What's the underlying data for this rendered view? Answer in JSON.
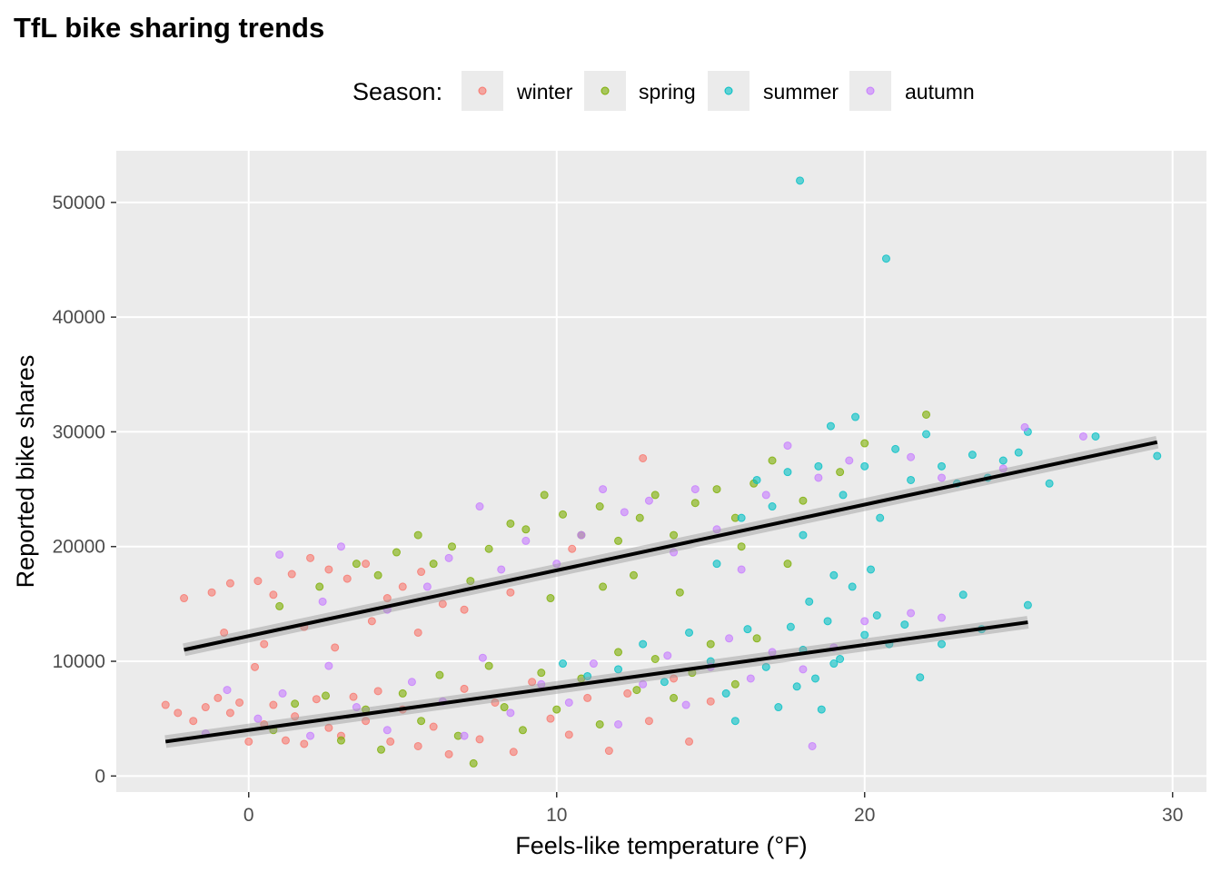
{
  "chart_data": {
    "type": "scatter",
    "title": "TfL bike sharing trends",
    "xlabel": "Feels-like temperature (°F)",
    "ylabel": "Reported bike shares",
    "xlim": [
      -4.3,
      31.1
    ],
    "ylim": [
      -1400,
      54500
    ],
    "xticks": [
      0,
      10,
      20,
      30
    ],
    "yticks": [
      0,
      10000,
      20000,
      30000,
      40000,
      50000
    ],
    "grid": true,
    "legend": {
      "title": "Season:",
      "position": "top"
    },
    "series": [
      {
        "name": "winter",
        "color": "#F8766D",
        "points": [
          [
            -2.7,
            6200
          ],
          [
            -2.3,
            5500
          ],
          [
            -1.8,
            4800
          ],
          [
            -1.4,
            6000
          ],
          [
            -1,
            6800
          ],
          [
            -0.6,
            5500
          ],
          [
            -0.3,
            6400
          ],
          [
            0,
            3000
          ],
          [
            0.2,
            9500
          ],
          [
            0.5,
            4500
          ],
          [
            0.8,
            6200
          ],
          [
            1.2,
            3100
          ],
          [
            1.5,
            5200
          ],
          [
            1.8,
            2800
          ],
          [
            2.2,
            6700
          ],
          [
            2.6,
            4200
          ],
          [
            3,
            3500
          ],
          [
            3.4,
            6900
          ],
          [
            3.8,
            4800
          ],
          [
            4.2,
            7400
          ],
          [
            4.6,
            3000
          ],
          [
            5,
            5800
          ],
          [
            5.5,
            2600
          ],
          [
            6,
            4300
          ],
          [
            6.5,
            1900
          ],
          [
            7,
            7600
          ],
          [
            7.5,
            3200
          ],
          [
            8,
            6400
          ],
          [
            8.6,
            2100
          ],
          [
            9.2,
            8200
          ],
          [
            9.8,
            5000
          ],
          [
            10.4,
            3600
          ],
          [
            11,
            6800
          ],
          [
            11.7,
            2200
          ],
          [
            12.3,
            7200
          ],
          [
            13,
            4800
          ],
          [
            13.8,
            8500
          ],
          [
            14.3,
            3000
          ],
          [
            15,
            6500
          ],
          [
            -2.1,
            15500
          ],
          [
            -1.2,
            16000
          ],
          [
            -0.6,
            16800
          ],
          [
            0.3,
            17000
          ],
          [
            0.8,
            15800
          ],
          [
            1.4,
            17600
          ],
          [
            2,
            19000
          ],
          [
            2.6,
            18000
          ],
          [
            3.2,
            17200
          ],
          [
            3.8,
            18500
          ],
          [
            4.5,
            15500
          ],
          [
            5,
            16500
          ],
          [
            5.6,
            17800
          ],
          [
            6.3,
            15000
          ],
          [
            -0.8,
            12500
          ],
          [
            0.5,
            11500
          ],
          [
            1.8,
            13000
          ],
          [
            2.8,
            11200
          ],
          [
            4,
            13500
          ],
          [
            5.5,
            12500
          ],
          [
            7,
            14500
          ],
          [
            12.8,
            27700
          ],
          [
            10.5,
            19800
          ],
          [
            8.5,
            16000
          ]
        ]
      },
      {
        "name": "spring",
        "color": "#7CAE00",
        "points": [
          [
            0.8,
            4000
          ],
          [
            1.5,
            6300
          ],
          [
            2.5,
            7000
          ],
          [
            3,
            3100
          ],
          [
            3.8,
            5800
          ],
          [
            4.3,
            2300
          ],
          [
            5,
            7200
          ],
          [
            5.6,
            4800
          ],
          [
            6.2,
            8800
          ],
          [
            6.8,
            3500
          ],
          [
            7.3,
            1100
          ],
          [
            7.8,
            9600
          ],
          [
            8.3,
            6000
          ],
          [
            8.9,
            4000
          ],
          [
            9.5,
            9000
          ],
          [
            10,
            5800
          ],
          [
            10.8,
            8500
          ],
          [
            11.4,
            4500
          ],
          [
            12,
            10800
          ],
          [
            12.6,
            7500
          ],
          [
            13.2,
            10200
          ],
          [
            13.8,
            6800
          ],
          [
            14.4,
            9000
          ],
          [
            15,
            11500
          ],
          [
            15.8,
            8000
          ],
          [
            16.5,
            12000
          ],
          [
            3.5,
            18500
          ],
          [
            4.2,
            17500
          ],
          [
            4.8,
            19500
          ],
          [
            5.5,
            21000
          ],
          [
            6,
            18500
          ],
          [
            6.6,
            20000
          ],
          [
            7.2,
            17000
          ],
          [
            7.8,
            19800
          ],
          [
            8.5,
            22000
          ],
          [
            9,
            21500
          ],
          [
            9.6,
            24500
          ],
          [
            10.2,
            22800
          ],
          [
            10.8,
            21000
          ],
          [
            11.4,
            23500
          ],
          [
            12,
            20500
          ],
          [
            12.7,
            22500
          ],
          [
            13.2,
            24500
          ],
          [
            13.8,
            21000
          ],
          [
            14.5,
            23800
          ],
          [
            15.2,
            25000
          ],
          [
            15.8,
            22500
          ],
          [
            16.4,
            25500
          ],
          [
            17,
            27500
          ],
          [
            18,
            24000
          ],
          [
            19.2,
            26500
          ],
          [
            20,
            29000
          ],
          [
            22,
            31500
          ],
          [
            9.8,
            15500
          ],
          [
            11.5,
            16500
          ],
          [
            12.5,
            17500
          ],
          [
            14,
            16000
          ],
          [
            16,
            20000
          ],
          [
            17.5,
            18500
          ],
          [
            1,
            14800
          ],
          [
            2.3,
            16500
          ]
        ]
      },
      {
        "name": "summer",
        "color": "#00BFC4",
        "points": [
          [
            10.2,
            9800
          ],
          [
            11,
            8700
          ],
          [
            12,
            9300
          ],
          [
            12.8,
            11500
          ],
          [
            13.5,
            8200
          ],
          [
            14.3,
            12500
          ],
          [
            15,
            10000
          ],
          [
            15.5,
            7200
          ],
          [
            15.8,
            4800
          ],
          [
            16.2,
            12800
          ],
          [
            16.8,
            9500
          ],
          [
            17.2,
            6000
          ],
          [
            17.6,
            13000
          ],
          [
            18,
            11000
          ],
          [
            18.4,
            8500
          ],
          [
            18.8,
            13500
          ],
          [
            19.2,
            10200
          ],
          [
            19.6,
            16500
          ],
          [
            20,
            12300
          ],
          [
            20.4,
            14000
          ],
          [
            20.8,
            11500
          ],
          [
            21.3,
            13200
          ],
          [
            21.8,
            8600
          ],
          [
            22.5,
            11500
          ],
          [
            23.2,
            15800
          ],
          [
            23.8,
            12800
          ],
          [
            25.3,
            14900
          ],
          [
            17.8,
            7800
          ],
          [
            18.6,
            5800
          ],
          [
            19,
            9800
          ],
          [
            15.2,
            18500
          ],
          [
            16,
            22500
          ],
          [
            16.5,
            25800
          ],
          [
            17,
            23500
          ],
          [
            17.5,
            26500
          ],
          [
            18,
            21000
          ],
          [
            18.5,
            27000
          ],
          [
            18.9,
            30500
          ],
          [
            19.3,
            24500
          ],
          [
            19.7,
            31300
          ],
          [
            20,
            27000
          ],
          [
            20.5,
            22500
          ],
          [
            21,
            28500
          ],
          [
            21.5,
            25800
          ],
          [
            22,
            29800
          ],
          [
            22.5,
            27000
          ],
          [
            23,
            25500
          ],
          [
            23.5,
            28000
          ],
          [
            24,
            26000
          ],
          [
            24.5,
            27500
          ],
          [
            25,
            28200
          ],
          [
            25.3,
            30000
          ],
          [
            26,
            25500
          ],
          [
            27.5,
            29600
          ],
          [
            29.5,
            27900
          ],
          [
            19,
            17500
          ],
          [
            20.2,
            18000
          ],
          [
            18.2,
            15200
          ],
          [
            17.9,
            51900
          ],
          [
            20.7,
            45100
          ]
        ]
      },
      {
        "name": "autumn",
        "color": "#C77CFF",
        "points": [
          [
            -1.4,
            3700
          ],
          [
            -0.7,
            7500
          ],
          [
            0.3,
            5000
          ],
          [
            1.1,
            7200
          ],
          [
            2,
            3500
          ],
          [
            2.6,
            9600
          ],
          [
            3.5,
            6000
          ],
          [
            4.5,
            4000
          ],
          [
            5.3,
            8200
          ],
          [
            6.3,
            6500
          ],
          [
            7,
            3500
          ],
          [
            7.6,
            10300
          ],
          [
            8.5,
            5500
          ],
          [
            9.5,
            8000
          ],
          [
            10.4,
            6400
          ],
          [
            11.2,
            9800
          ],
          [
            12,
            4500
          ],
          [
            12.8,
            8000
          ],
          [
            13.6,
            10500
          ],
          [
            14.2,
            6200
          ],
          [
            15,
            9500
          ],
          [
            15.6,
            12000
          ],
          [
            16.3,
            8500
          ],
          [
            17,
            10800
          ],
          [
            18,
            9300
          ],
          [
            18.3,
            2600
          ],
          [
            19,
            11200
          ],
          [
            1,
            19300
          ],
          [
            2.4,
            15200
          ],
          [
            3,
            20000
          ],
          [
            4.5,
            14500
          ],
          [
            5.8,
            16500
          ],
          [
            6.5,
            19000
          ],
          [
            7.5,
            23500
          ],
          [
            8.2,
            18000
          ],
          [
            9,
            20500
          ],
          [
            10,
            18500
          ],
          [
            10.8,
            21000
          ],
          [
            11.5,
            25000
          ],
          [
            12.2,
            23000
          ],
          [
            13,
            24000
          ],
          [
            13.8,
            19500
          ],
          [
            14.5,
            25000
          ],
          [
            15.2,
            21500
          ],
          [
            16,
            18000
          ],
          [
            16.8,
            24500
          ],
          [
            17.5,
            28800
          ],
          [
            18.5,
            26000
          ],
          [
            19.5,
            27500
          ],
          [
            21.5,
            27800
          ],
          [
            22.5,
            26000
          ],
          [
            24.5,
            26800
          ],
          [
            25.2,
            30400
          ],
          [
            27.1,
            29600
          ],
          [
            20,
            13500
          ],
          [
            21.5,
            14200
          ],
          [
            22.5,
            13800
          ]
        ]
      }
    ],
    "trend_lines": [
      {
        "name": "upper",
        "x": [
          -2.1,
          29.5
        ],
        "y": [
          11000,
          29100
        ]
      },
      {
        "name": "lower",
        "x": [
          -2.7,
          25.3
        ],
        "y": [
          3000,
          13400
        ]
      }
    ]
  }
}
